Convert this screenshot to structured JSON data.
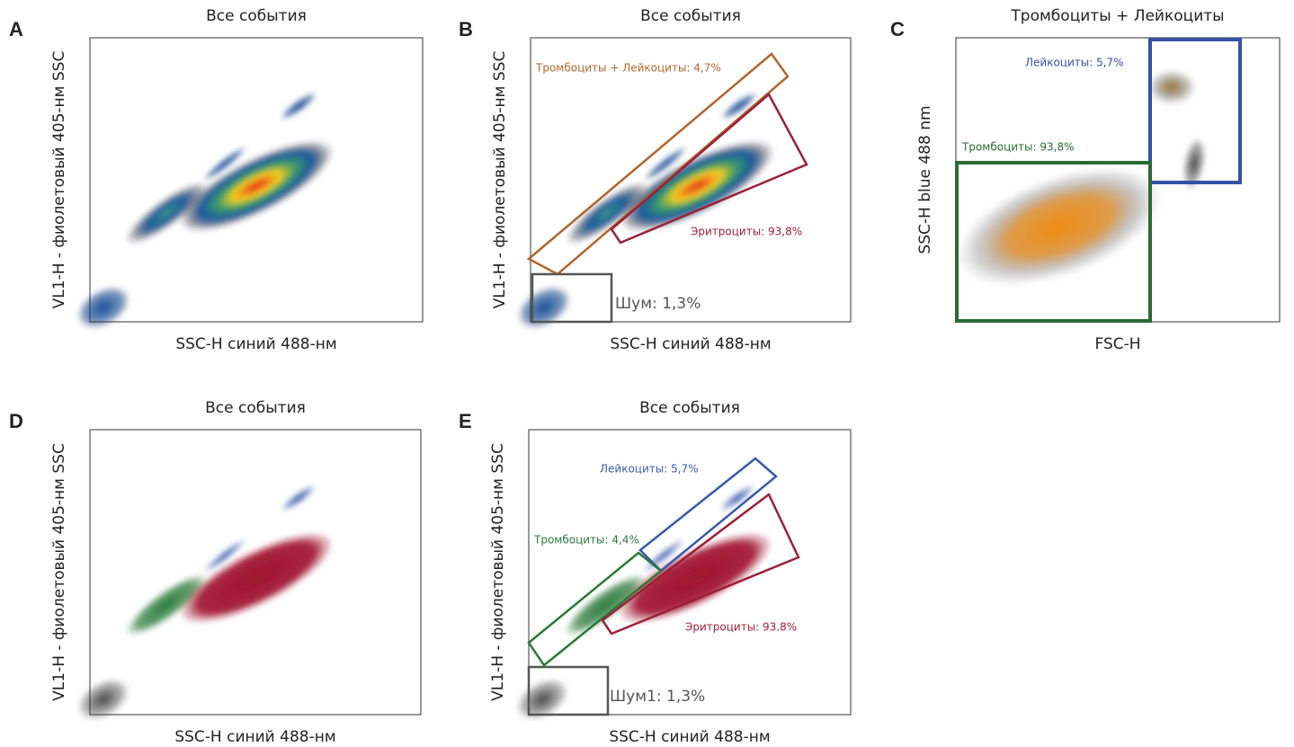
{
  "panels": [
    {
      "letter": "A",
      "title": "Все события",
      "x_label": "SSC-H синий 488-нм",
      "y_label": "VL1-H - фиолетовый 405-нм SSC",
      "gates": []
    },
    {
      "letter": "B",
      "title": "Все события",
      "x_label": "SSC-H синий 488-нм",
      "y_label": "VL1-H - фиолетовый 405-нм SSC",
      "gates": [
        {
          "label": "Тромбоциты + Лейкоциты: 4,7%"
        },
        {
          "label": "Эритроциты: 93,8%"
        },
        {
          "label": "Шум: 1,3%"
        }
      ]
    },
    {
      "letter": "C",
      "title": "Тромбоциты + Лейкоциты",
      "x_label": "FSC-H",
      "y_label": "SSC-H blue 488 nm",
      "gates": [
        {
          "label": "Лейкоциты: 5,7%"
        },
        {
          "label": "Тромбоциты: 93,8%"
        }
      ]
    },
    {
      "letter": "D",
      "title": "Все события",
      "x_label": "SSC-H синий 488-нм",
      "y_label": "VL1-H - фиолетовый 405-нм SSC",
      "gates": []
    },
    {
      "letter": "E",
      "title": "Все события",
      "x_label": "SSC-H синий 488-нм",
      "y_label": "VL1-H - фиолетовый 405-нм SSC",
      "gates": [
        {
          "label": "Лейкоциты: 5,7%"
        },
        {
          "label": "Тромбоциты: 4,4%"
        },
        {
          "label": "Эритроциты: 93.8%"
        },
        {
          "label": "Шум1: 1,3%"
        }
      ]
    }
  ]
}
